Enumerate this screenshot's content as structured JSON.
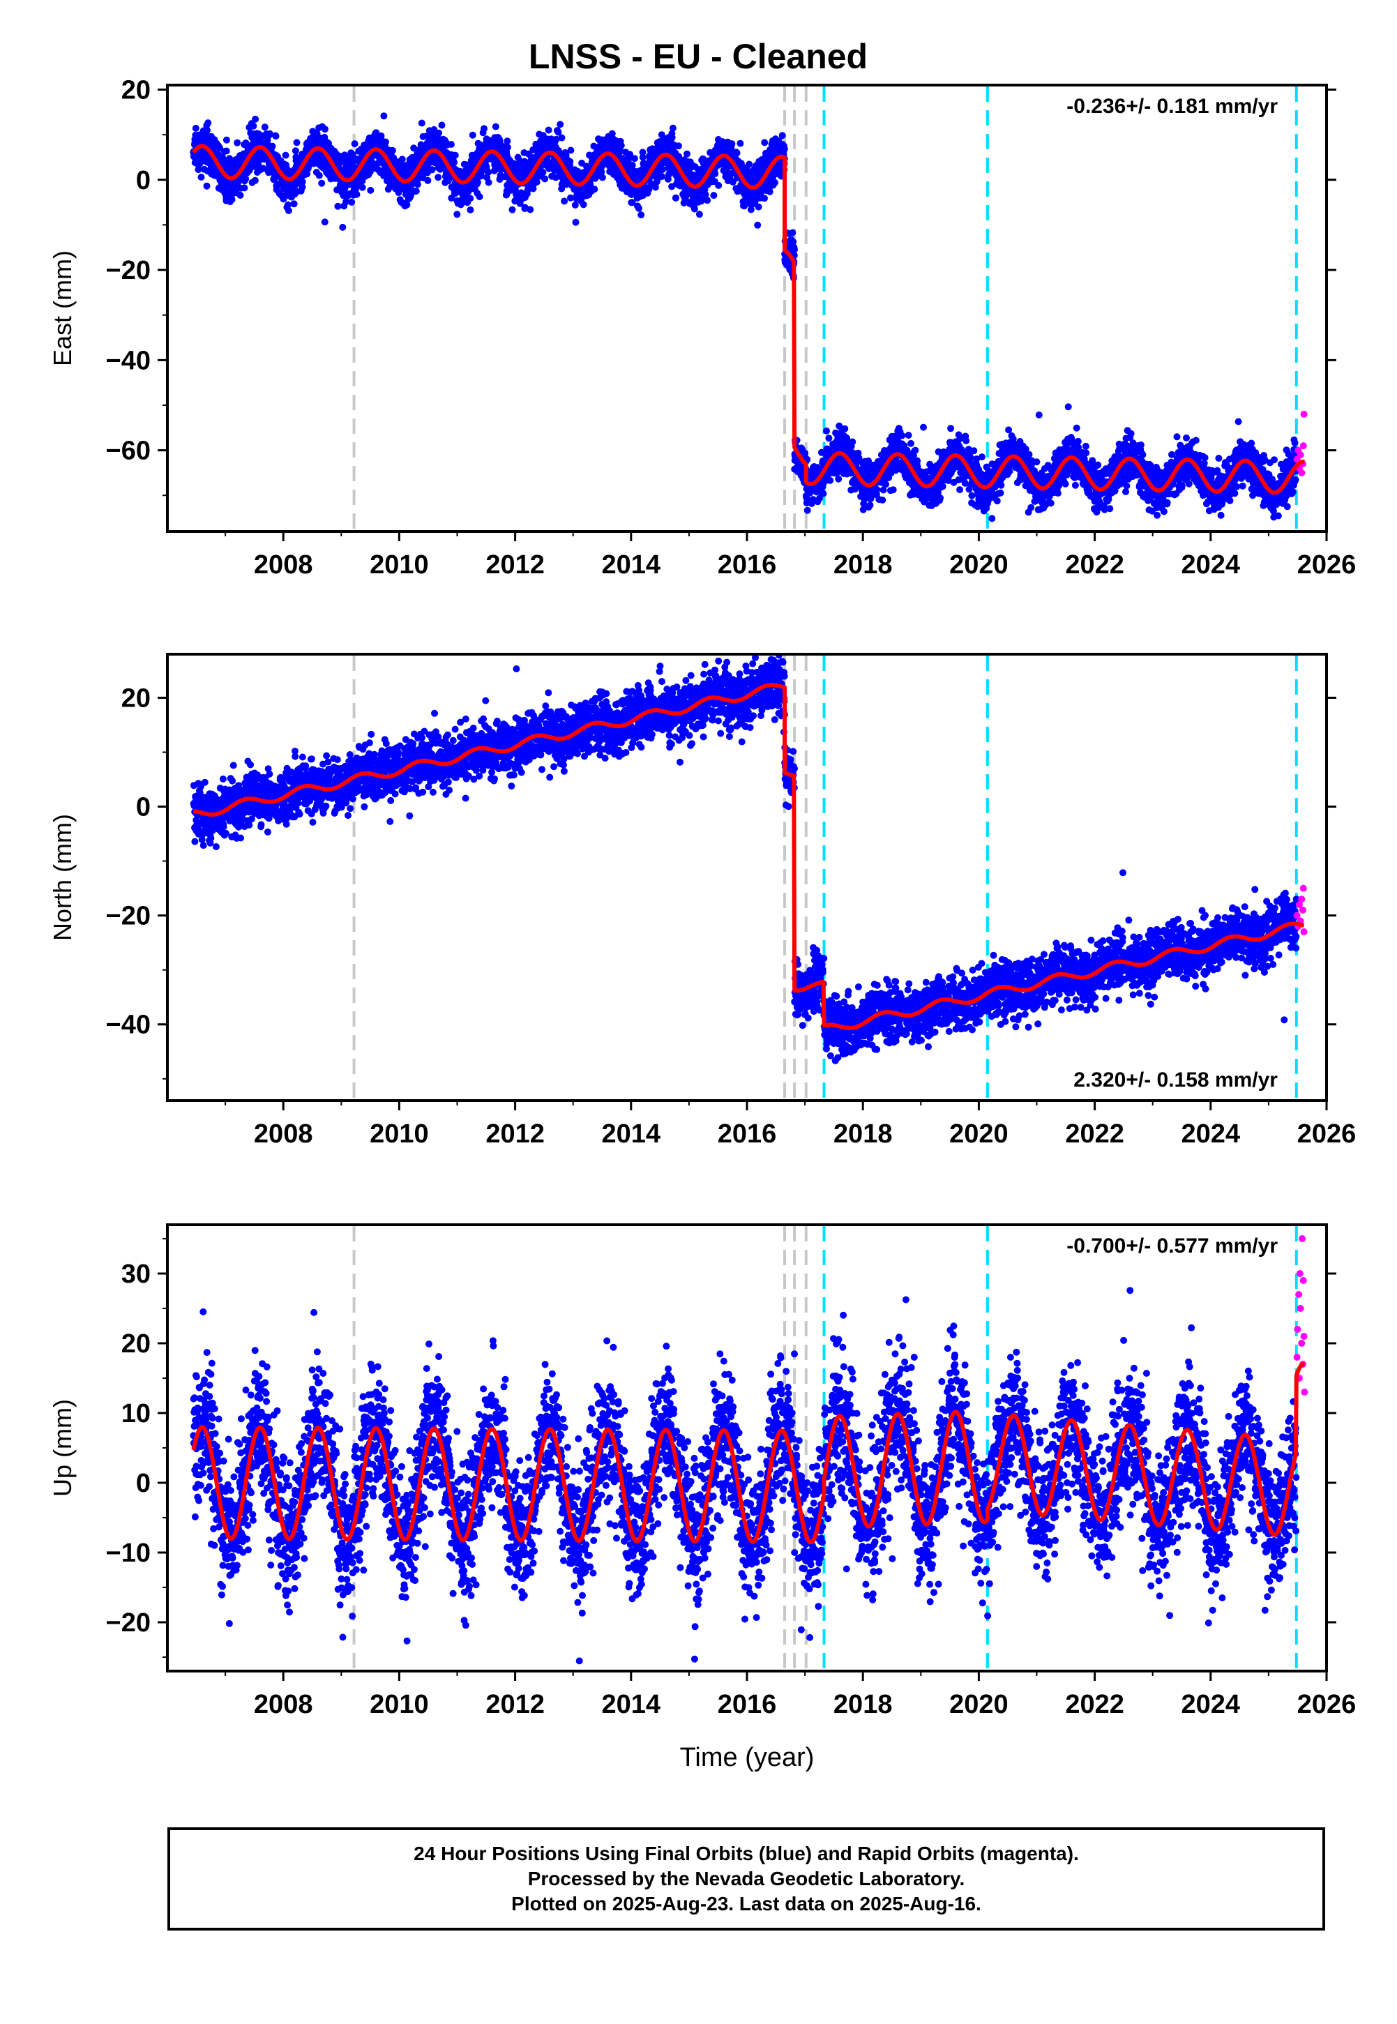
{
  "chart_data": {
    "title": "LNSS  - EU - Cleaned",
    "type": "scatter",
    "xlabel": "Time (year)",
    "xlim": [
      2006.0,
      2026.0
    ],
    "x_ticks": [
      2008,
      2010,
      2012,
      2014,
      2016,
      2018,
      2020,
      2022,
      2024,
      2026
    ],
    "x_tick_labels": [
      "2008",
      "2010",
      "2012",
      "2014",
      "2016",
      "2018",
      "2020",
      "2022",
      "2024",
      "2026"
    ],
    "first_data": 2006.45,
    "last_data": 2025.62,
    "rapid_start": 2025.48,
    "equipment_changes": [
      2009.22,
      2016.65,
      2016.82,
      2017.02
    ],
    "other_events": [
      2017.33,
      2020.15,
      2025.48
    ],
    "colors": {
      "final_orbits": "#0000ff",
      "rapid_orbits": "#ff00ff",
      "model": "#ff0000",
      "equipment_change": "#c8c8c8",
      "other_event": "#00e0ff"
    },
    "panels": [
      {
        "component": "East",
        "ylabel": "East (mm)",
        "ylim": [
          -78,
          21
        ],
        "yticks": [
          20,
          0,
          -20,
          -40,
          -60
        ],
        "ytick_labels": [
          "20",
          "0",
          "−20",
          "−40",
          "−60"
        ],
        "rate": "-0.236+/- 0.181 mm/yr",
        "rate_position": "top-right",
        "rate_mm_yr": -0.236,
        "rate_sigma": 0.181,
        "noise_sd_mm": 2.4,
        "model_segments": [
          {
            "t0": 2006.45,
            "t1": 2016.65,
            "offset": 4.0,
            "trend": -0.236,
            "amp": 3.5,
            "phase": 0.35
          },
          {
            "t0": 2016.65,
            "t1": 2016.82,
            "offset": -19.0,
            "trend": -0.236,
            "amp": 3.5,
            "phase": 0.35
          },
          {
            "t0": 2016.82,
            "t1": 2017.02,
            "offset": -60.0,
            "trend": -0.236,
            "amp": 3.5,
            "phase": 0.35
          },
          {
            "t0": 2017.02,
            "t1": 2025.62,
            "offset": -64.0,
            "trend": -0.236,
            "amp": 3.5,
            "phase": 0.35
          }
        ],
        "rapid_points": [
          [
            2025.49,
            -62
          ],
          [
            2025.51,
            -60
          ],
          [
            2025.53,
            -64
          ],
          [
            2025.55,
            -61
          ],
          [
            2025.57,
            -65
          ],
          [
            2025.59,
            -63
          ],
          [
            2025.6,
            -59
          ],
          [
            2025.61,
            -52
          ]
        ]
      },
      {
        "component": "North",
        "ylabel": "North (mm)",
        "ylim": [
          -54,
          28
        ],
        "yticks": [
          20,
          0,
          -20,
          -40
        ],
        "ytick_labels": [
          "20",
          "0",
          "−20",
          "−40"
        ],
        "rate": "2.320+/- 0.158 mm/yr",
        "rate_position": "bottom-right",
        "rate_mm_yr": 2.32,
        "rate_sigma": 0.158,
        "noise_sd_mm": 2.5,
        "model_segments": [
          {
            "t0": 2006.45,
            "t1": 2016.65,
            "offset": -1.5,
            "trend": 2.32,
            "amp": 0.8,
            "phase": 0.1
          },
          {
            "t0": 2016.65,
            "t1": 2016.82,
            "offset": 6.5,
            "trend": 0.0,
            "amp": 0.8,
            "phase": 0.1
          },
          {
            "t0": 2016.82,
            "t1": 2017.33,
            "offset": -33.0,
            "trend": 0.0,
            "amp": 0.8,
            "phase": 0.1
          },
          {
            "t0": 2017.33,
            "t1": 2025.62,
            "offset": -41.0,
            "trend": 2.32,
            "amp": 0.8,
            "phase": 0.1
          }
        ],
        "rapid_points": [
          [
            2025.49,
            -20
          ],
          [
            2025.51,
            -22
          ],
          [
            2025.53,
            -18
          ],
          [
            2025.55,
            -21
          ],
          [
            2025.57,
            -17
          ],
          [
            2025.59,
            -19
          ],
          [
            2025.6,
            -15
          ],
          [
            2025.61,
            -23
          ]
        ]
      },
      {
        "component": "Up",
        "ylabel": "Up (mm)",
        "ylim": [
          -27,
          37
        ],
        "yticks": [
          30,
          20,
          10,
          0,
          -10,
          -20
        ],
        "ytick_labels": [
          "30",
          "20",
          "10",
          "0",
          "−10",
          "−20"
        ],
        "rate": "-0.700+/- 0.577 mm/yr",
        "rate_position": "top-right",
        "rate_mm_yr": -0.7,
        "rate_sigma": 0.577,
        "noise_sd_mm": 4.8,
        "model_segments": [
          {
            "t0": 2006.45,
            "t1": 2017.33,
            "offset": 0.0,
            "trend": -0.05,
            "amp": 8.0,
            "phase": 0.35
          },
          {
            "t0": 2017.33,
            "t1": 2020.15,
            "offset": 1.5,
            "trend": 0.3,
            "amp": 8.0,
            "phase": 0.35
          },
          {
            "t0": 2020.15,
            "t1": 2025.48,
            "offset": 3.0,
            "trend": -0.7,
            "amp": 7.0,
            "phase": 0.35
          },
          {
            "t0": 2025.48,
            "t1": 2025.62,
            "offset": 11.0,
            "trend": 0.0,
            "amp": 6.0,
            "phase": 0.35
          }
        ],
        "rapid_points": [
          [
            2025.49,
            18
          ],
          [
            2025.5,
            22
          ],
          [
            2025.52,
            27
          ],
          [
            2025.53,
            15
          ],
          [
            2025.54,
            30
          ],
          [
            2025.55,
            25
          ],
          [
            2025.57,
            20
          ],
          [
            2025.58,
            35
          ],
          [
            2025.59,
            17
          ],
          [
            2025.6,
            29
          ],
          [
            2025.61,
            21
          ],
          [
            2025.62,
            13
          ]
        ]
      }
    ]
  },
  "footer": {
    "line1": "24 Hour Positions Using Final Orbits (blue) and Rapid Orbits (magenta).",
    "line2": "Processed by the Nevada Geodetic Laboratory.",
    "line3": "Plotted on 2025-Aug-23. Last data on 2025-Aug-16."
  }
}
